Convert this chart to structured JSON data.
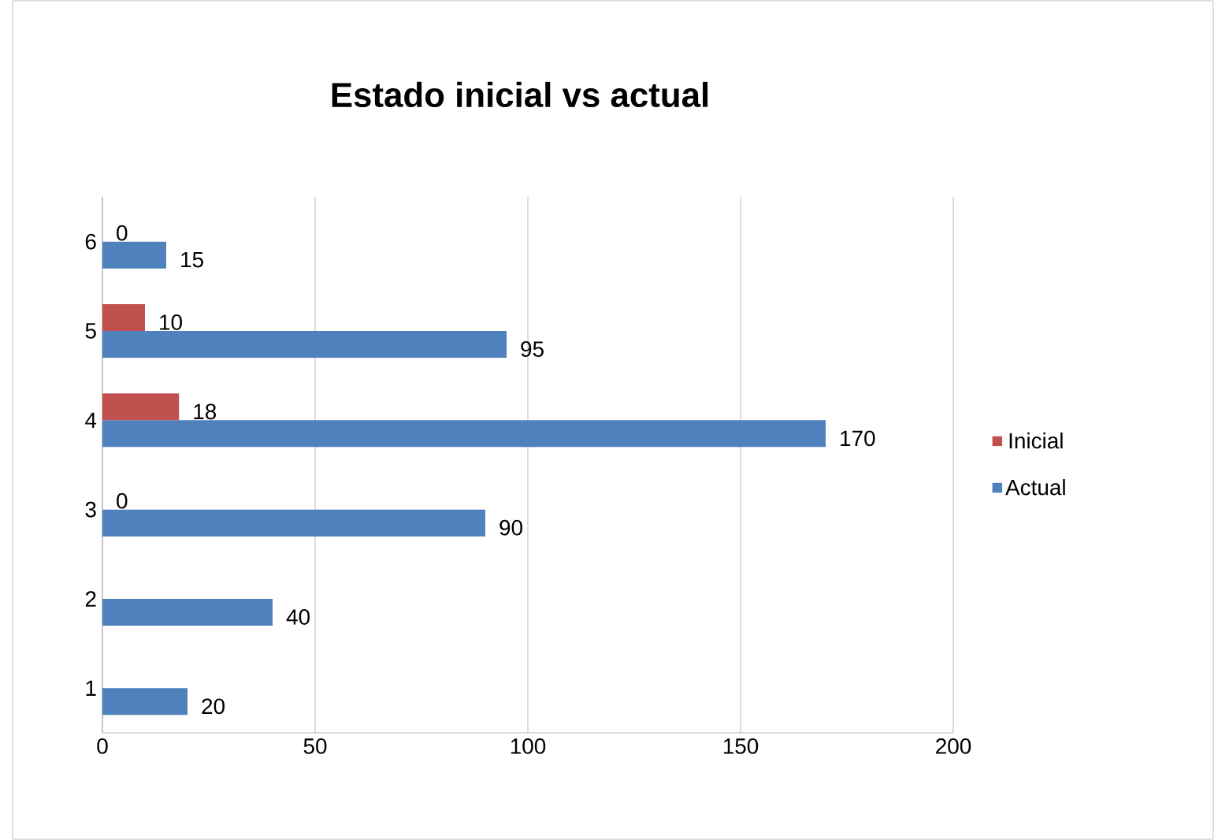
{
  "chart_data": {
    "type": "bar",
    "orientation": "horizontal",
    "title": "Estado inicial vs actual",
    "categories": [
      "6",
      "5",
      "4",
      "3",
      "2",
      "1"
    ],
    "series": [
      {
        "name": "Inicial",
        "color": "#c0504d",
        "values": [
          0,
          10,
          18,
          0,
          null,
          null
        ],
        "value_labels": [
          "0",
          "10",
          "18",
          "0",
          null,
          null
        ]
      },
      {
        "name": "Actual",
        "color": "#4f81bd",
        "values": [
          15,
          95,
          170,
          90,
          40,
          20
        ],
        "value_labels": [
          "15",
          "95",
          "170",
          "90",
          "40",
          "20"
        ]
      }
    ],
    "xlim": [
      0,
      200
    ],
    "xticks": [
      0,
      50,
      100,
      150,
      200
    ],
    "grid": "x",
    "legend": "right"
  }
}
